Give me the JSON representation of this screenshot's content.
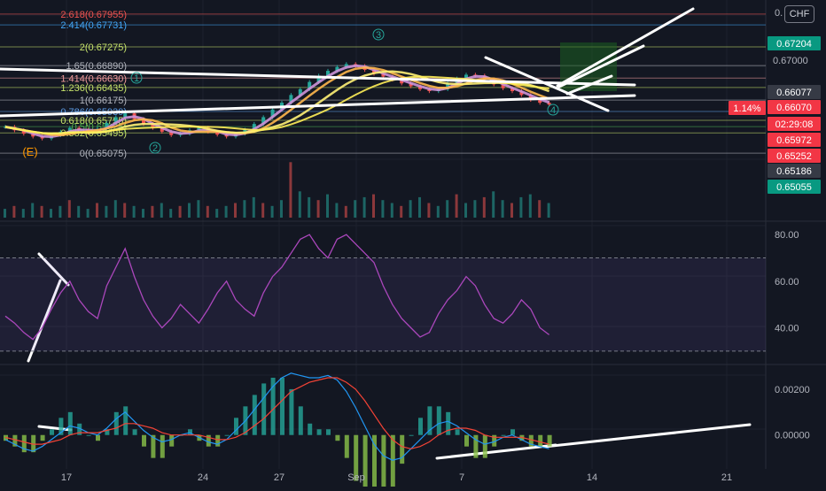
{
  "header": {
    "currency": "CHF",
    "top_value": "0."
  },
  "fib_levels": [
    {
      "label": "2.618(0.67955)",
      "value": 0.67955,
      "color": "#ef5350"
    },
    {
      "label": "2.414(0.67731)",
      "value": 0.67731,
      "color": "#42a5f5"
    },
    {
      "label": "2(0.67275)",
      "value": 0.67275,
      "color": "#c6e26a"
    },
    {
      "label": "1.65(0.66890)",
      "value": 0.6689,
      "color": "#b2b5be"
    },
    {
      "label": "1.414(0.66630)",
      "value": 0.6663,
      "color": "#ef9a9a"
    },
    {
      "label": "1.236(0.66435)",
      "value": 0.66435,
      "color": "#c6e26a"
    },
    {
      "label": "1(0.66175)",
      "value": 0.66175,
      "color": "#b2b5be"
    },
    {
      "label": "0.786(0.65939)",
      "value": 0.65939,
      "color": "#5c9ce6"
    },
    {
      "label": "0.618(0.65755)",
      "value": 0.65755,
      "color": "#c6e26a"
    },
    {
      "label": "0.5(0.65625)",
      "value": 0.65625,
      "color": "#4caf50"
    },
    {
      "label": "0.382(0.65495)",
      "value": 0.65495,
      "color": "#c6e26a"
    },
    {
      "label": "0(0.65075)",
      "value": 0.65075,
      "color": "#b2b5be"
    }
  ],
  "price_badges": [
    {
      "label": "0.67204",
      "value": 0.67204,
      "bg": "#089981",
      "fg": "#ffffff"
    },
    {
      "label": "0.66077",
      "value": 0.66077,
      "bg": "#363a45",
      "fg": "#ffffff"
    },
    {
      "label": "0.66070",
      "value": 0.6607,
      "bg": "#f23645",
      "fg": "#ffffff"
    },
    {
      "label": "02:29:08",
      "value": 0.65945,
      "bg": "#f23645",
      "fg": "#ffffff"
    },
    {
      "label": "0.65972",
      "value": 0.65972,
      "bg": "#f23645",
      "fg": "#ffffff"
    },
    {
      "label": "0.65252",
      "value": 0.65252,
      "bg": "#f23645",
      "fg": "#ffffff"
    },
    {
      "label": "0.65186",
      "value": 0.65186,
      "bg": "#363a45",
      "fg": "#ffffff"
    },
    {
      "label": "0.65055",
      "value": 0.65055,
      "bg": "#089981",
      "fg": "#ffffff"
    }
  ],
  "price_axis_ticks": [
    "0.67000"
  ],
  "change_badge": "1.14%",
  "wave_labels": [
    "(E)",
    "1",
    "2",
    "3",
    "4"
  ],
  "chart_data": {
    "type": "line",
    "x_ticks": [
      "17",
      "24",
      "27",
      "Sep",
      "7",
      "14",
      "21"
    ],
    "price_series": [
      0.6562,
      0.6555,
      0.6548,
      0.6542,
      0.6538,
      0.6545,
      0.6552,
      0.656,
      0.6556,
      0.655,
      0.6558,
      0.657,
      0.6582,
      0.659,
      0.6578,
      0.6568,
      0.656,
      0.6552,
      0.6545,
      0.6548,
      0.6555,
      0.656,
      0.6552,
      0.6546,
      0.6542,
      0.6548,
      0.6556,
      0.6568,
      0.6582,
      0.6598,
      0.6612,
      0.6628,
      0.664,
      0.6655,
      0.6668,
      0.6678,
      0.6686,
      0.6692,
      0.6688,
      0.668,
      0.6672,
      0.6666,
      0.666,
      0.6652,
      0.6646,
      0.664,
      0.6636,
      0.664,
      0.6652,
      0.6662,
      0.667,
      0.6668,
      0.666,
      0.665,
      0.6642,
      0.6636,
      0.6628,
      0.6618,
      0.6612,
      0.6608
    ],
    "volume": [
      3,
      4,
      3,
      5,
      4,
      3,
      4,
      6,
      4,
      3,
      5,
      4,
      6,
      5,
      4,
      3,
      4,
      5,
      3,
      4,
      5,
      6,
      4,
      3,
      4,
      5,
      6,
      7,
      5,
      4,
      6,
      19,
      9,
      7,
      6,
      8,
      5,
      4,
      6,
      7,
      8,
      6,
      5,
      4,
      6,
      7,
      5,
      4,
      6,
      8,
      5,
      6,
      7,
      9,
      6,
      5,
      7,
      8,
      6,
      5
    ],
    "rsi": {
      "ylim": [
        25,
        85
      ],
      "ticks": [
        80.0,
        60.0,
        40.0
      ],
      "upper_band": 70,
      "lower_band": 30,
      "values": [
        45,
        42,
        38,
        35,
        40,
        48,
        55,
        60,
        52,
        47,
        44,
        58,
        66,
        74,
        62,
        52,
        45,
        40,
        44,
        50,
        46,
        42,
        48,
        55,
        60,
        52,
        48,
        45,
        55,
        62,
        66,
        72,
        78,
        80,
        74,
        70,
        78,
        80,
        76,
        72,
        68,
        58,
        50,
        44,
        40,
        36,
        38,
        46,
        52,
        56,
        62,
        58,
        50,
        44,
        42,
        46,
        52,
        48,
        40,
        37
      ]
    },
    "macd": {
      "ticks": [
        0.002,
        0.0
      ],
      "ylim": [
        -0.0014,
        0.003
      ],
      "macd": [
        -0.0002,
        -0.0004,
        -0.0006,
        -0.0007,
        -0.0005,
        -0.0002,
        0.0001,
        0.0004,
        0.0003,
        0.0001,
        0.0,
        0.0003,
        0.0007,
        0.001,
        0.0006,
        0.0002,
        -0.0001,
        -0.0003,
        -0.0002,
        0.0,
        0.0001,
        -0.0001,
        -0.0003,
        -0.0004,
        -0.0002,
        0.0002,
        0.0006,
        0.0011,
        0.0016,
        0.0021,
        0.0025,
        0.0027,
        0.0026,
        0.0025,
        0.0025,
        0.0026,
        0.0024,
        0.0019,
        0.0012,
        0.0004,
        -0.0004,
        -0.0009,
        -0.0011,
        -0.001,
        -0.0006,
        -0.0002,
        0.0002,
        0.0005,
        0.0006,
        0.0004,
        0.0001,
        -0.0002,
        -0.0004,
        -0.0003,
        -0.0001,
        0.0,
        -0.0002,
        -0.0004,
        -0.0005,
        -0.0006
      ],
      "signal": [
        -0.0001,
        -0.0002,
        -0.0003,
        -0.0004,
        -0.0004,
        -0.0003,
        -0.0002,
        0.0,
        0.0001,
        0.0001,
        0.0001,
        0.0002,
        0.0003,
        0.0005,
        0.0005,
        0.0004,
        0.0003,
        0.0001,
        0.0,
        0.0,
        0.0,
        0.0,
        -0.0001,
        -0.0002,
        -0.0002,
        -0.0001,
        0.0001,
        0.0004,
        0.0007,
        0.0011,
        0.0015,
        0.0019,
        0.0021,
        0.0023,
        0.0024,
        0.0025,
        0.0025,
        0.0023,
        0.002,
        0.0015,
        0.0009,
        0.0003,
        -0.0002,
        -0.0005,
        -0.0006,
        -0.0005,
        -0.0003,
        0.0,
        0.0002,
        0.0003,
        0.0003,
        0.0002,
        0.0,
        -0.0001,
        -0.0001,
        -0.0001,
        -0.0001,
        -0.0002,
        -0.0003,
        -0.0004
      ]
    }
  }
}
